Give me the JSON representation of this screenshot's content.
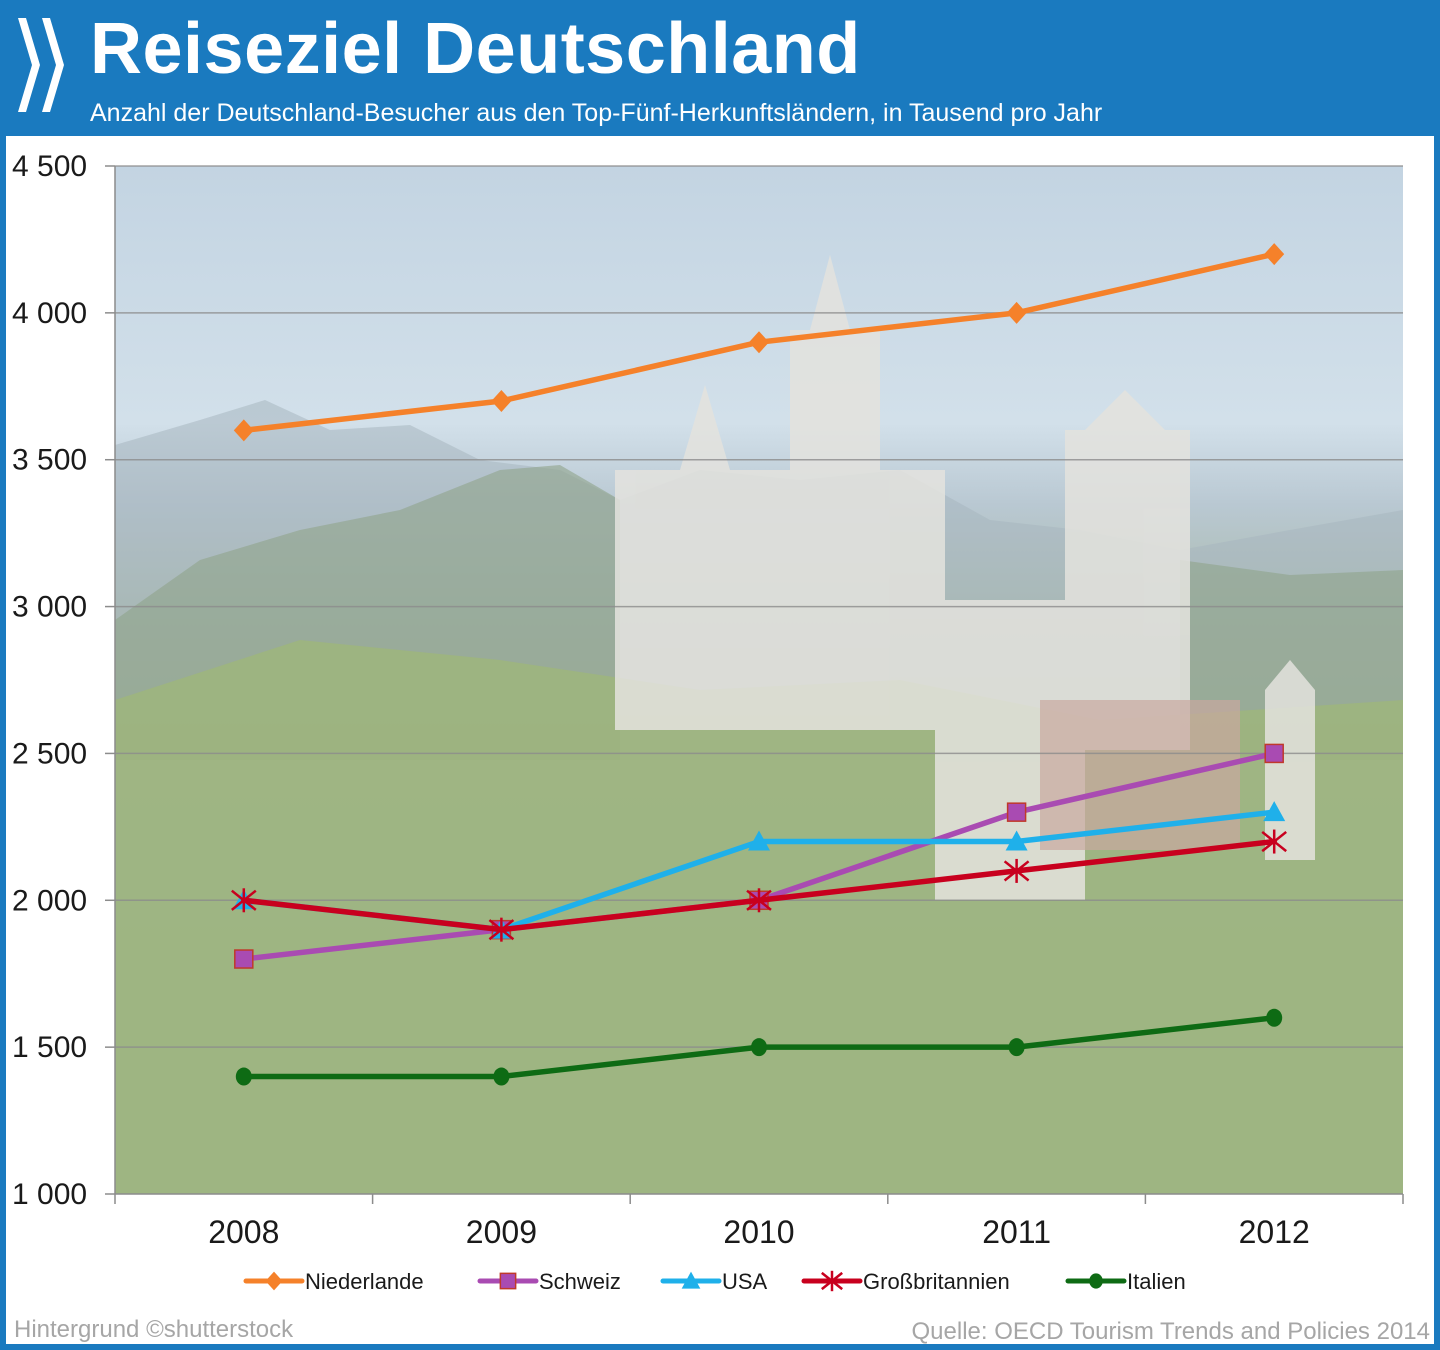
{
  "header": {
    "title": "Reiseziel Deutschland",
    "subtitle": "Anzahl der Deutschland-Besucher aus den Top-Fünf-Herkunftsländern, in Tausend pro Jahr",
    "logo_icon": "oecd-chevrons-icon"
  },
  "footer": {
    "credit": "Hintergrund ©shutterstock",
    "source": "Quelle: OECD Tourism Trends and Policies 2014"
  },
  "colors": {
    "header_bg": "#1a7abf",
    "Niederlande": "#f5812a",
    "Schweiz": "#a94bb2",
    "USA": "#1fb0ea",
    "Großbritannien": "#c8001e",
    "Italien": "#0e6b14"
  },
  "chart_data": {
    "type": "line",
    "title": "Reiseziel Deutschland",
    "subtitle": "Anzahl der Deutschland-Besucher aus den Top-Fünf-Herkunftsländern, in Tausend pro Jahr",
    "xlabel": "",
    "ylabel": "",
    "categories": [
      "2008",
      "2009",
      "2010",
      "2011",
      "2012"
    ],
    "ylim": [
      1000,
      4500
    ],
    "yticks": [
      1000,
      1500,
      2000,
      2500,
      3000,
      3500,
      4000,
      4500
    ],
    "ytick_labels": [
      "1 000",
      "1 500",
      "2 000",
      "2 500",
      "3 000",
      "3 500",
      "4 000",
      "4 500"
    ],
    "grid": true,
    "legend_position": "bottom",
    "series": [
      {
        "name": "Niederlande",
        "marker": "diamond",
        "values": [
          3600,
          3700,
          3900,
          4000,
          4200
        ]
      },
      {
        "name": "Schweiz",
        "marker": "square",
        "values": [
          1800,
          1900,
          2000,
          2300,
          2500
        ]
      },
      {
        "name": "USA",
        "marker": "triangle",
        "values": [
          2000,
          1900,
          2200,
          2200,
          2300
        ]
      },
      {
        "name": "Großbritannien",
        "marker": "asterisk",
        "values": [
          2000,
          1900,
          2000,
          2100,
          2200
        ]
      },
      {
        "name": "Italien",
        "marker": "circle",
        "values": [
          1400,
          1400,
          1500,
          1500,
          1600
        ]
      }
    ]
  }
}
